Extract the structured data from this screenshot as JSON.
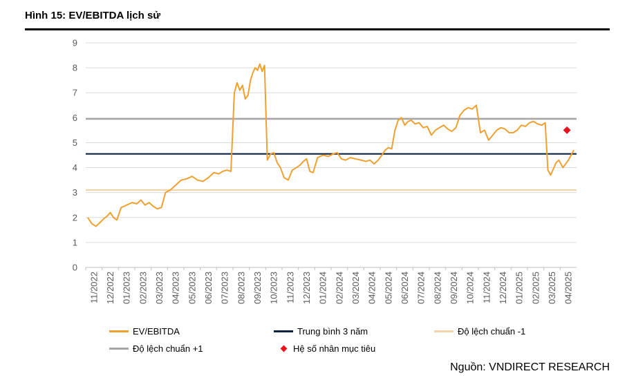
{
  "figure": {
    "title": "Hình 15: EV/EBITDA lịch sử",
    "source": "Nguồn: VNDIRECT RESEARCH"
  },
  "legend": {
    "items": [
      {
        "label": "EV/EBITDA",
        "color": "#F0A030",
        "kind": "line"
      },
      {
        "label": "Trung bình 3 năm",
        "color": "#0C2340",
        "kind": "line"
      },
      {
        "label": "Độ lệch chuẩn -1",
        "color": "#F3D4A8",
        "kind": "line"
      },
      {
        "label": "Độ lệch chuẩn +1",
        "color": "#A6A6A6",
        "kind": "line"
      },
      {
        "label": "Hệ số nhân mục tiêu",
        "color": "#E8141B",
        "kind": "diamond"
      }
    ]
  },
  "chart_data": {
    "type": "line",
    "title": "Hình 15: EV/EBITDA lịch sử",
    "ylim": [
      0,
      9
    ],
    "yticks": [
      0,
      1,
      2,
      3,
      4,
      5,
      6,
      7,
      8,
      9
    ],
    "x_tick_labels": [
      "11/2022",
      "12/2022",
      "01/2023",
      "02/2023",
      "03/2023",
      "04/2023",
      "05/2023",
      "06/2023",
      "07/2023",
      "08/2023",
      "09/2023",
      "10/2023",
      "11/2023",
      "12/2023",
      "01/2024",
      "02/2024",
      "03/2024",
      "04/2024",
      "05/2024",
      "06/2024",
      "07/2024",
      "08/2024",
      "09/2024",
      "10/2024",
      "11/2024",
      "12/2024",
      "01/2025",
      "02/2025",
      "03/2025",
      "04/2025"
    ],
    "grid": "horizontal",
    "legend_position": "bottom",
    "series": [
      {
        "name": "EV/EBITDA",
        "color": "#F0A030",
        "points": [
          [
            "11/2022",
            2.0
          ],
          [
            "11/2022",
            1.75
          ],
          [
            "11/2022",
            1.65
          ],
          [
            "11/2022",
            1.8
          ],
          [
            "12/2022",
            1.95
          ],
          [
            "12/2022",
            2.05
          ],
          [
            "12/2022",
            2.2
          ],
          [
            "12/2022",
            2.0
          ],
          [
            "12/2022",
            1.9
          ],
          [
            "01/2023",
            2.4
          ],
          [
            "01/2023",
            2.5
          ],
          [
            "01/2023",
            2.6
          ],
          [
            "02/2023",
            2.55
          ],
          [
            "02/2023",
            2.7
          ],
          [
            "02/2023",
            2.5
          ],
          [
            "02/2023",
            2.6
          ],
          [
            "03/2023",
            2.45
          ],
          [
            "03/2023",
            2.35
          ],
          [
            "03/2023",
            2.4
          ],
          [
            "03/2023",
            3.0
          ],
          [
            "04/2023",
            3.1
          ],
          [
            "04/2023",
            3.3
          ],
          [
            "04/2023",
            3.5
          ],
          [
            "05/2023",
            3.55
          ],
          [
            "05/2023",
            3.65
          ],
          [
            "05/2023",
            3.5
          ],
          [
            "06/2023",
            3.45
          ],
          [
            "06/2023",
            3.6
          ],
          [
            "06/2023",
            3.8
          ],
          [
            "07/2023",
            3.75
          ],
          [
            "07/2023",
            3.85
          ],
          [
            "07/2023",
            3.9
          ],
          [
            "07/2023",
            3.85
          ],
          [
            "08/2023",
            7.0
          ],
          [
            "08/2023",
            7.4
          ],
          [
            "08/2023",
            7.1
          ],
          [
            "08/2023",
            7.3
          ],
          [
            "08/2023",
            6.75
          ],
          [
            "08/2023",
            6.9
          ],
          [
            "09/2023",
            7.5
          ],
          [
            "09/2023",
            7.8
          ],
          [
            "09/2023",
            8.0
          ],
          [
            "09/2023",
            7.9
          ],
          [
            "09/2023",
            8.15
          ],
          [
            "09/2023",
            7.85
          ],
          [
            "09/2023",
            8.1
          ],
          [
            "10/2023",
            4.3
          ],
          [
            "10/2023",
            4.55
          ],
          [
            "10/2023",
            4.6
          ],
          [
            "10/2023",
            4.2
          ],
          [
            "10/2023",
            4.0
          ],
          [
            "11/2023",
            3.6
          ],
          [
            "11/2023",
            3.5
          ],
          [
            "11/2023",
            3.9
          ],
          [
            "11/2023",
            4.0
          ],
          [
            "12/2023",
            4.1
          ],
          [
            "12/2023",
            4.25
          ],
          [
            "12/2023",
            4.35
          ],
          [
            "12/2023",
            3.85
          ],
          [
            "12/2023",
            3.8
          ],
          [
            "01/2024",
            4.4
          ],
          [
            "01/2024",
            4.5
          ],
          [
            "01/2024",
            4.45
          ],
          [
            "02/2024",
            4.55
          ],
          [
            "02/2024",
            4.6
          ],
          [
            "02/2024",
            4.35
          ],
          [
            "02/2024",
            4.3
          ],
          [
            "03/2024",
            4.4
          ],
          [
            "03/2024",
            4.35
          ],
          [
            "03/2024",
            4.3
          ],
          [
            "04/2024",
            4.25
          ],
          [
            "04/2024",
            4.3
          ],
          [
            "04/2024",
            4.15
          ],
          [
            "04/2024",
            4.3
          ],
          [
            "05/2024",
            4.5
          ],
          [
            "05/2024",
            4.7
          ],
          [
            "05/2024",
            4.8
          ],
          [
            "05/2024",
            4.75
          ],
          [
            "05/2024",
            5.5
          ],
          [
            "06/2024",
            5.9
          ],
          [
            "06/2024",
            6.0
          ],
          [
            "06/2024",
            5.7
          ],
          [
            "06/2024",
            5.85
          ],
          [
            "06/2024",
            5.9
          ],
          [
            "07/2024",
            5.75
          ],
          [
            "07/2024",
            5.8
          ],
          [
            "07/2024",
            5.6
          ],
          [
            "07/2024",
            5.65
          ],
          [
            "08/2024",
            5.3
          ],
          [
            "08/2024",
            5.5
          ],
          [
            "08/2024",
            5.6
          ],
          [
            "08/2024",
            5.7
          ],
          [
            "09/2024",
            5.55
          ],
          [
            "09/2024",
            5.45
          ],
          [
            "09/2024",
            5.6
          ],
          [
            "09/2024",
            6.1
          ],
          [
            "10/2024",
            6.3
          ],
          [
            "10/2024",
            6.4
          ],
          [
            "10/2024",
            6.35
          ],
          [
            "10/2024",
            6.5
          ],
          [
            "11/2024",
            5.4
          ],
          [
            "11/2024",
            5.5
          ],
          [
            "11/2024",
            5.1
          ],
          [
            "11/2024",
            5.3
          ],
          [
            "12/2024",
            5.5
          ],
          [
            "12/2024",
            5.6
          ],
          [
            "12/2024",
            5.55
          ],
          [
            "12/2024",
            5.4
          ],
          [
            "01/2025",
            5.4
          ],
          [
            "01/2025",
            5.5
          ],
          [
            "01/2025",
            5.7
          ],
          [
            "01/2025",
            5.65
          ],
          [
            "02/2025",
            5.8
          ],
          [
            "02/2025",
            5.85
          ],
          [
            "02/2025",
            5.75
          ],
          [
            "02/2025",
            5.7
          ],
          [
            "03/2025",
            5.8
          ],
          [
            "03/2025",
            3.9
          ],
          [
            "03/2025",
            3.7
          ],
          [
            "03/2025",
            3.95
          ],
          [
            "03/2025",
            4.2
          ],
          [
            "03/2025",
            4.3
          ],
          [
            "04/2025",
            4.0
          ],
          [
            "04/2025",
            4.3
          ],
          [
            "04/2025",
            4.7
          ]
        ]
      },
      {
        "name": "Trung bình 3 năm",
        "color": "#0C2340",
        "constant": 4.55
      },
      {
        "name": "Độ lệch chuẩn -1",
        "color": "#F3D4A8",
        "constant": 3.1
      },
      {
        "name": "Độ lệch chuẩn +1",
        "color": "#A6A6A6",
        "constant": 5.95
      },
      {
        "name": "Hệ số nhân mục tiêu",
        "color": "#E8141B",
        "marker": "diamond",
        "x": "04/2025",
        "y": 5.5
      }
    ]
  }
}
